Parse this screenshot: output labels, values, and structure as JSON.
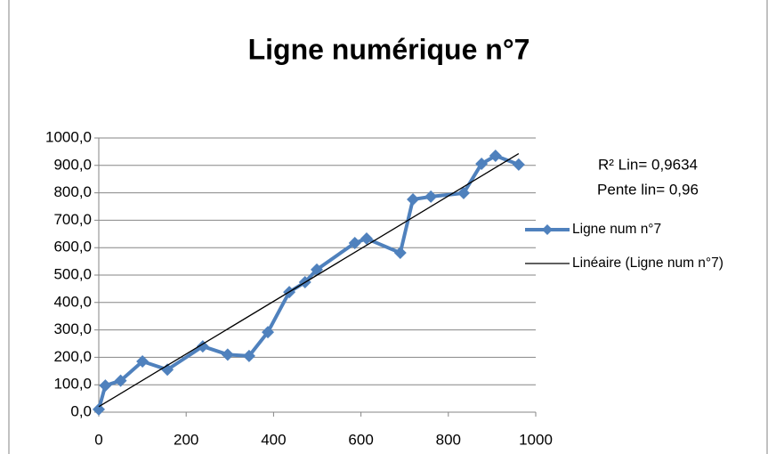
{
  "chart_data": {
    "type": "line",
    "title": "Ligne numérique n°7",
    "annotations": [
      "R² Lin= 0,9634",
      "Pente lin= 0,96"
    ],
    "series": [
      {
        "name": "Ligne num n°7",
        "color": "#4f81bd",
        "marker": "diamond",
        "x": [
          0,
          15,
          50,
          100,
          157,
          238,
          295,
          344,
          387,
          436,
          472,
          499,
          586,
          613,
          690,
          719,
          760,
          835,
          876,
          908,
          961
        ],
        "values": [
          10,
          97,
          115,
          185,
          155,
          240,
          210,
          205,
          292,
          438,
          474,
          520,
          617,
          633,
          581,
          776,
          786,
          799,
          906,
          935,
          903
        ]
      },
      {
        "name": "Linéaire (Ligne num n°7)",
        "color": "#000000",
        "marker": "none",
        "x": [
          0,
          961
        ],
        "values": [
          20,
          943
        ]
      }
    ],
    "xlim": [
      0,
      1000
    ],
    "xticks": [
      0,
      200,
      400,
      600,
      800,
      1000
    ],
    "ylim": [
      0,
      1000
    ],
    "yticks": [
      {
        "value": 0,
        "label": "0,0"
      },
      {
        "value": 100,
        "label": "100,0"
      },
      {
        "value": 200,
        "label": "200,0"
      },
      {
        "value": 300,
        "label": "300,0"
      },
      {
        "value": 400,
        "label": "400,0"
      },
      {
        "value": 500,
        "label": "500,0"
      },
      {
        "value": 600,
        "label": "600,0"
      },
      {
        "value": 700,
        "label": "700,0"
      },
      {
        "value": 800,
        "label": "800,0"
      },
      {
        "value": 900,
        "label": "900,0"
      },
      {
        "value": 1000,
        "label": "1000,0"
      }
    ],
    "grid": true,
    "legend": "right"
  }
}
